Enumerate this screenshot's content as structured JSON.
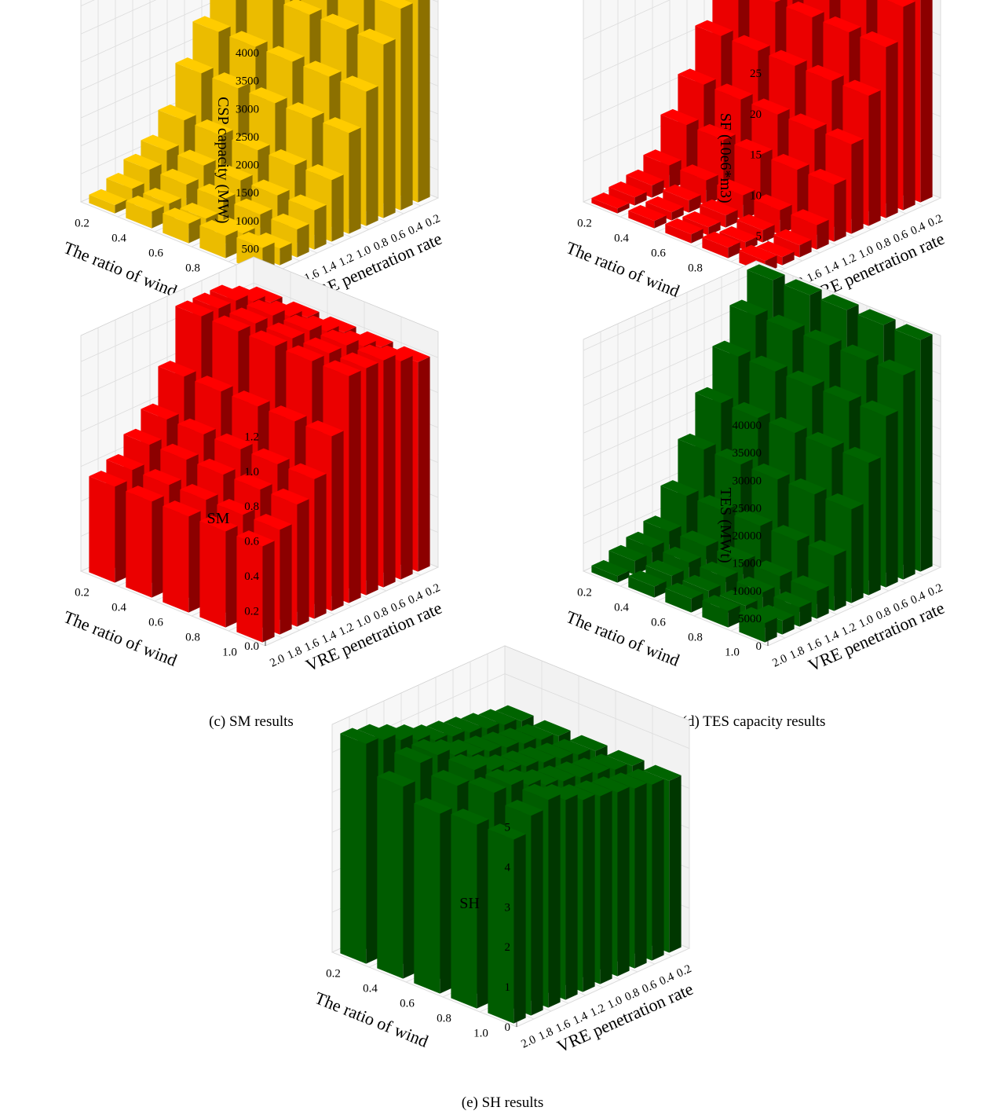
{
  "figure": {
    "panels": [
      {
        "caption": "(a) CSP capacity results",
        "zlabel": "CSP capacity (MW)",
        "xlabel": "The ratio of wind",
        "ylabel": "VRE penetration rate",
        "zticks": [
          "0",
          "500",
          "1000",
          "1500",
          "2000",
          "2500",
          "3000",
          "3500",
          "4000"
        ],
        "xticks": [
          "0.2",
          "0.4",
          "0.6",
          "0.8",
          "1.0"
        ],
        "yticks": [
          "2.0",
          "1.8",
          "1.6",
          "1.4",
          "1.2",
          "1.0",
          "0.8",
          "0.6",
          "0.4",
          "0.2"
        ]
      },
      {
        "caption": "(b) SF capacity results",
        "zlabel": "SF (10e6*m3)",
        "xlabel": "The ratio of wind",
        "ylabel": "VRE penetration rate",
        "zticks": [
          "0",
          "5",
          "10",
          "15",
          "20",
          "25"
        ],
        "xticks": [
          "0.2",
          "0.4",
          "0.6",
          "0.8",
          "1.0"
        ],
        "yticks": [
          "2.0",
          "1.8",
          "1.6",
          "1.4",
          "1.2",
          "1.0",
          "0.8",
          "0.6",
          "0.4",
          "0.2"
        ]
      },
      {
        "caption": "(c) SM results",
        "zlabel": "SM",
        "xlabel": "The ratio of wind",
        "ylabel": "VRE penetration rate",
        "zticks": [
          "0.0",
          "0.2",
          "0.4",
          "0.6",
          "0.8",
          "1.0",
          "1.2"
        ],
        "xticks": [
          "0.2",
          "0.4",
          "0.6",
          "0.8",
          "1.0"
        ],
        "yticks": [
          "2.0",
          "1.8",
          "1.6",
          "1.4",
          "1.2",
          "1.0",
          "0.8",
          "0.6",
          "0.4",
          "0.2"
        ]
      },
      {
        "caption": "(d) TES capacity results",
        "zlabel": "TES (MWt)",
        "xlabel": "The ratio of wind",
        "ylabel": "VRE penetration rate",
        "zticks": [
          "0",
          "5000",
          "10000",
          "15000",
          "20000",
          "25000",
          "30000",
          "35000",
          "40000"
        ],
        "xticks": [
          "0.2",
          "0.4",
          "0.6",
          "0.8",
          "1.0"
        ],
        "yticks": [
          "2.0",
          "1.8",
          "1.6",
          "1.4",
          "1.2",
          "1.0",
          "0.8",
          "0.6",
          "0.4",
          "0.2"
        ]
      },
      {
        "caption": "(e) SH results",
        "zlabel": "SH",
        "xlabel": "The ratio of wind",
        "ylabel": "VRE penetration rate",
        "zticks": [
          "0",
          "1",
          "2",
          "3",
          "4",
          "5"
        ],
        "xticks": [
          "0.2",
          "0.4",
          "0.6",
          "0.8",
          "1.0"
        ],
        "yticks": [
          "2.0",
          "1.8",
          "1.6",
          "1.4",
          "1.2",
          "1.0",
          "0.8",
          "0.6",
          "0.4",
          "0.2"
        ]
      }
    ]
  },
  "chart_data": [
    {
      "type": "bar3d",
      "title": "(a) CSP capacity results",
      "xlabel": "The ratio of wind",
      "ylabel": "VRE penetration rate",
      "zlabel": "CSP capacity (MW)",
      "x_categories": [
        "0.2",
        "0.4",
        "0.6",
        "0.8",
        "1.0"
      ],
      "y_categories": [
        "0.2",
        "0.4",
        "0.6",
        "0.8",
        "1.0",
        "1.2",
        "1.4",
        "1.6",
        "1.8",
        "2.0"
      ],
      "zlim": [
        0,
        4000
      ],
      "color": "#FFCC00",
      "values": [
        [
          4000,
          4000,
          4000,
          4000,
          4000
        ],
        [
          3600,
          3600,
          3600,
          3600,
          3600
        ],
        [
          3100,
          3100,
          3100,
          3100,
          3100
        ],
        [
          2400,
          2400,
          2400,
          2400,
          2400
        ],
        [
          1800,
          1800,
          1800,
          1800,
          1800
        ],
        [
          1100,
          1100,
          1100,
          1100,
          1100
        ],
        [
          700,
          700,
          700,
          700,
          700
        ],
        [
          500,
          500,
          500,
          500,
          500
        ],
        [
          300,
          300,
          300,
          300,
          300
        ],
        [
          150,
          300,
          350,
          400,
          450
        ]
      ]
    },
    {
      "type": "bar3d",
      "title": "(b) SF capacity results",
      "xlabel": "The ratio of wind",
      "ylabel": "VRE penetration rate",
      "zlabel": "SF (10e6*m3)",
      "x_categories": [
        "0.2",
        "0.4",
        "0.6",
        "0.8",
        "1.0"
      ],
      "y_categories": [
        "0.2",
        "0.4",
        "0.6",
        "0.8",
        "1.0",
        "1.2",
        "1.4",
        "1.6",
        "1.8",
        "2.0"
      ],
      "zlim": [
        0,
        28
      ],
      "color": "#FF0000",
      "values": [
        [
          28,
          28,
          28,
          28,
          28
        ],
        [
          25,
          25,
          25,
          25,
          25
        ],
        [
          21,
          21,
          21,
          21,
          21
        ],
        [
          16,
          16,
          16,
          16,
          16
        ],
        [
          11,
          11,
          11,
          11,
          11
        ],
        [
          7,
          7,
          7,
          7,
          7
        ],
        [
          3,
          3,
          3,
          3,
          3
        ],
        [
          1.5,
          1.5,
          1.5,
          1.5,
          1.5
        ],
        [
          1,
          1,
          1,
          1,
          1
        ],
        [
          0.6,
          0.9,
          1.1,
          1.3,
          1.5
        ]
      ]
    },
    {
      "type": "bar3d",
      "title": "(c) SM results",
      "xlabel": "The ratio of wind",
      "ylabel": "VRE penetration rate",
      "zlabel": "SM",
      "x_categories": [
        "0.2",
        "0.4",
        "0.6",
        "0.8",
        "1.0"
      ],
      "y_categories": [
        "0.2",
        "0.4",
        "0.6",
        "0.8",
        "1.0",
        "1.2",
        "1.4",
        "1.6",
        "1.8",
        "2.0"
      ],
      "zlim": [
        0,
        1.35
      ],
      "color": "#FF0000",
      "values": [
        [
          1.2,
          1.2,
          1.2,
          1.2,
          1.2
        ],
        [
          1.25,
          1.25,
          1.25,
          1.25,
          1.25
        ],
        [
          1.3,
          1.3,
          1.3,
          1.3,
          1.3
        ],
        [
          1.3,
          1.3,
          1.3,
          1.3,
          1.3
        ],
        [
          1.3,
          1.3,
          1.3,
          1.3,
          1.3
        ],
        [
          1.0,
          1.0,
          1.0,
          1.0,
          1.0
        ],
        [
          0.8,
          0.8,
          0.8,
          0.8,
          0.8
        ],
        [
          0.7,
          0.7,
          0.7,
          0.7,
          0.7
        ],
        [
          0.6,
          0.6,
          0.6,
          0.6,
          0.6
        ],
        [
          0.55,
          0.55,
          0.55,
          0.55,
          0.55
        ]
      ]
    },
    {
      "type": "bar3d",
      "title": "(d) TES capacity results",
      "xlabel": "The ratio of wind",
      "ylabel": "VRE penetration rate",
      "zlabel": "TES (MWt)",
      "x_categories": [
        "0.2",
        "0.4",
        "0.6",
        "0.8",
        "1.0"
      ],
      "y_categories": [
        "0.2",
        "0.4",
        "0.6",
        "0.8",
        "1.0",
        "1.2",
        "1.4",
        "1.6",
        "1.8",
        "2.0"
      ],
      "zlim": [
        0,
        42000
      ],
      "color": "#006400",
      "values": [
        [
          42000,
          42000,
          42000,
          42000,
          42000
        ],
        [
          37000,
          37000,
          37000,
          37000,
          37000
        ],
        [
          31000,
          31000,
          31000,
          31000,
          31000
        ],
        [
          24000,
          24000,
          24000,
          24000,
          24000
        ],
        [
          17000,
          17000,
          17000,
          17000,
          17000
        ],
        [
          10000,
          10000,
          10000,
          10000,
          10000
        ],
        [
          5000,
          5000,
          5000,
          5000,
          5000
        ],
        [
          3500,
          3500,
          3500,
          3500,
          3500
        ],
        [
          2500,
          2500,
          2500,
          2500,
          2500
        ],
        [
          1200,
          2000,
          2500,
          3000,
          3500
        ]
      ]
    },
    {
      "type": "bar3d",
      "title": "(e) SH results",
      "xlabel": "The ratio of wind",
      "ylabel": "VRE penetration rate",
      "zlabel": "SH",
      "x_categories": [
        "0.2",
        "0.4",
        "0.6",
        "0.8",
        "1.0"
      ],
      "y_categories": [
        "0.2",
        "0.4",
        "0.6",
        "0.8",
        "1.0",
        "1.2",
        "1.4",
        "1.6",
        "1.8",
        "2.0"
      ],
      "zlim": [
        0,
        5.7
      ],
      "color": "#006400",
      "values": [
        [
          4.3,
          4.3,
          4.3,
          4.3,
          4.3
        ],
        [
          4.4,
          4.4,
          4.4,
          4.4,
          4.4
        ],
        [
          4.5,
          4.5,
          4.5,
          4.5,
          4.5
        ],
        [
          4.6,
          4.6,
          4.6,
          4.6,
          4.6
        ],
        [
          4.7,
          4.7,
          4.7,
          4.7,
          4.7
        ],
        [
          4.8,
          4.8,
          4.8,
          4.8,
          4.8
        ],
        [
          5.0,
          5.0,
          5.0,
          5.0,
          5.0
        ],
        [
          5.2,
          5.2,
          5.2,
          5.2,
          5.2
        ],
        [
          5.4,
          5.2,
          5.0,
          5.2,
          5.0
        ],
        [
          5.5,
          4.8,
          4.5,
          4.6,
          4.6
        ]
      ]
    }
  ]
}
